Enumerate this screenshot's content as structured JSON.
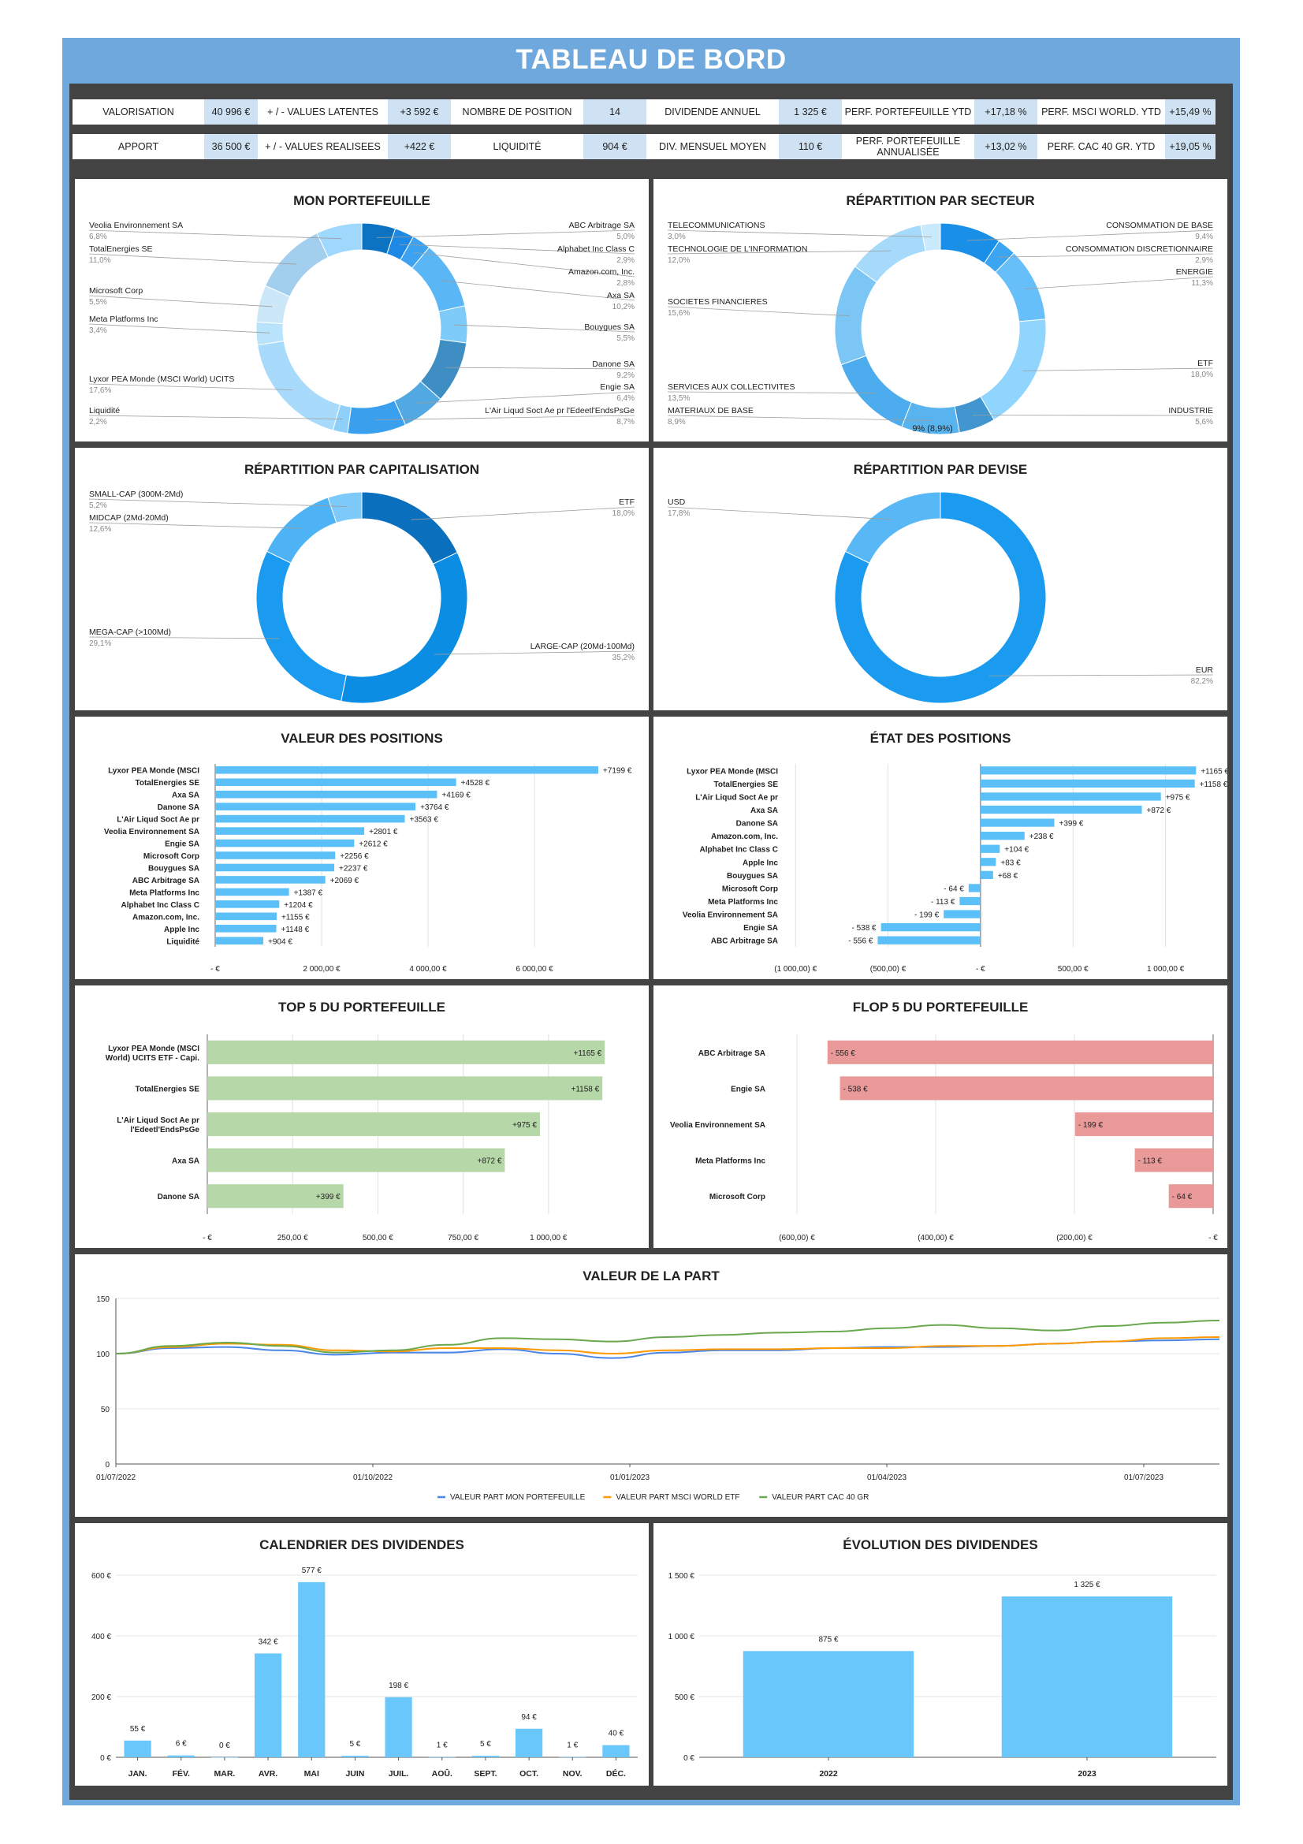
{
  "title": "TABLEAU DE BORD",
  "kpis": {
    "row1": [
      {
        "label": "VALORISATION",
        "value": "40 996 €"
      },
      {
        "label": "+ / - VALUES LATENTES",
        "value": "+3 592 €"
      },
      {
        "label": "NOMBRE DE POSITION",
        "value": "14"
      },
      {
        "label": "DIVIDENDE ANNUEL",
        "value": "1 325 €"
      },
      {
        "label": "PERF. PORTEFEUILLE YTD",
        "value": "+17,18 %"
      },
      {
        "label": "PERF. MSCI WORLD. YTD",
        "value": "+15,49 %"
      }
    ],
    "row2": [
      {
        "label": "APPORT",
        "value": "36 500 €"
      },
      {
        "label": "+ / - VALUES REALISEES",
        "value": "+422 €"
      },
      {
        "label": "LIQUIDITÉ",
        "value": "904 €"
      },
      {
        "label": "DIV. MENSUEL MOYEN",
        "value": "110 €"
      },
      {
        "label": "PERF. PORTEFEUILLE ANNUALISÉE",
        "value": "+13,02 %"
      },
      {
        "label": "PERF. CAC 40 GR. YTD",
        "value": "+19,05 %"
      }
    ]
  },
  "colors": {
    "frame": "#6fa8dc",
    "dark": "#434343",
    "kpi_value_bg": "#cfe2f3",
    "bar": "#5bc0f8",
    "green": "#b6d7a8",
    "red": "#ea9999",
    "line_blue": "#4a86e8",
    "line_orange": "#ff9900",
    "line_green": "#6aa84f"
  },
  "chart_data": [
    {
      "id": "portefeuille",
      "type": "pie",
      "title": "MON PORTEFEUILLE",
      "slices": [
        {
          "label": "ABC Arbitrage SA",
          "pct": "5,0%",
          "value": 5.0,
          "color": "#0b73c2",
          "side": "right"
        },
        {
          "label": "Alphabet Inc Class C",
          "pct": "2,9%",
          "value": 2.9,
          "color": "#1e88e5",
          "side": "right"
        },
        {
          "label": "Amazon.com, Inc.",
          "pct": "2,8%",
          "value": 2.8,
          "color": "#3da2ef",
          "side": "right"
        },
        {
          "label": "Axa SA",
          "pct": "10,2%",
          "value": 10.2,
          "color": "#5ab6f4",
          "side": "right"
        },
        {
          "label": "Bouygues SA",
          "pct": "5,5%",
          "value": 5.5,
          "color": "#7ecbfa",
          "side": "right"
        },
        {
          "label": "Danone SA",
          "pct": "9,2%",
          "value": 9.2,
          "color": "#3e8ec4",
          "side": "right"
        },
        {
          "label": "Engie SA",
          "pct": "6,4%",
          "value": 6.4,
          "color": "#52a8e0",
          "side": "right"
        },
        {
          "label": "L'Air Liqud Soct Ae pr l'Edeetl'EndsPsGe",
          "pct": "8,7%",
          "value": 8.7,
          "color": "#3aa0ee",
          "side": "right"
        },
        {
          "label": "Liquidité",
          "pct": "2,2%",
          "value": 2.2,
          "color": "#8fd0fb",
          "side": "left"
        },
        {
          "label": "Lyxor PEA Monde (MSCI World) UCITS",
          "pct": "17,6%",
          "value": 17.6,
          "color": "#a7dafb",
          "side": "left"
        },
        {
          "label": "Meta Platforms Inc",
          "pct": "3,4%",
          "value": 3.4,
          "color": "#b9e2fb",
          "side": "left"
        },
        {
          "label": "Microsoft Corp",
          "pct": "5,5%",
          "value": 5.5,
          "color": "#cbe7f8",
          "side": "left"
        },
        {
          "label": "TotalEnergies SE",
          "pct": "11,0%",
          "value": 11.0,
          "color": "#a3cfee",
          "side": "left"
        },
        {
          "label": "Veolia Environnement SA",
          "pct": "6,8%",
          "value": 6.8,
          "color": "#9ed8fd",
          "side": "left"
        }
      ]
    },
    {
      "id": "secteur",
      "type": "pie",
      "title": "RÉPARTITION PAR SECTEUR",
      "center_label": "9% (8,9%)",
      "slices": [
        {
          "label": "CONSOMMATION DE BASE",
          "pct": "9,4%",
          "value": 9.4,
          "color": "#1a8fe8",
          "side": "right"
        },
        {
          "label": "CONSOMMATION DISCRETIONNAIRE",
          "pct": "2,9%",
          "value": 2.9,
          "color": "#3ba5f1",
          "side": "right"
        },
        {
          "label": "ENERGIE",
          "pct": "11,3%",
          "value": 11.3,
          "color": "#66bff9",
          "side": "right"
        },
        {
          "label": "ETF",
          "pct": "18,0%",
          "value": 18.0,
          "color": "#90d5fd",
          "side": "right"
        },
        {
          "label": "INDUSTRIE",
          "pct": "5,6%",
          "value": 5.6,
          "color": "#4296cf",
          "side": "right"
        },
        {
          "label": "MATERIAUX DE BASE",
          "pct": "8,9%",
          "value": 8.9,
          "color": "#58b3ef",
          "side": "left"
        },
        {
          "label": "SERVICES AUX COLLECTIVITES",
          "pct": "13,5%",
          "value": 13.5,
          "color": "#4cacee",
          "side": "left"
        },
        {
          "label": "SOCIETES FINANCIERES",
          "pct": "15,6%",
          "value": 15.6,
          "color": "#7cc6f6",
          "side": "left"
        },
        {
          "label": "TECHNOLOGIE DE L'INFORMATION",
          "pct": "12,0%",
          "value": 12.0,
          "color": "#a6dafa",
          "side": "left"
        },
        {
          "label": "TELECOMMUNICATIONS",
          "pct": "3,0%",
          "value": 3.0,
          "color": "#c9eafc",
          "side": "left"
        }
      ]
    },
    {
      "id": "capitalisation",
      "type": "pie",
      "title": "RÉPARTITION PAR CAPITALISATION",
      "slices": [
        {
          "label": "ETF",
          "pct": "18,0%",
          "value": 18.0,
          "color": "#0a6fbd",
          "side": "right"
        },
        {
          "label": "LARGE-CAP (20Md-100Md)",
          "pct": "35,2%",
          "value": 35.2,
          "color": "#0b8de4",
          "side": "right"
        },
        {
          "label": "MEGA-CAP (>100Md)",
          "pct": "29,1%",
          "value": 29.1,
          "color": "#1a9bf0",
          "side": "left"
        },
        {
          "label": "MIDCAP (2Md-20Md)",
          "pct": "12,6%",
          "value": 12.6,
          "color": "#4db3f5",
          "side": "left"
        },
        {
          "label": "SMALL-CAP (300M-2Md)",
          "pct": "5,2%",
          "value": 5.2,
          "color": "#7cc9fa",
          "side": "left"
        }
      ]
    },
    {
      "id": "devise",
      "type": "pie",
      "title": "RÉPARTITION PAR DEVISE",
      "slices": [
        {
          "label": "EUR",
          "pct": "82,2%",
          "value": 82.2,
          "color": "#1a9bf0",
          "side": "right"
        },
        {
          "label": "USD",
          "pct": "17,8%",
          "value": 17.8,
          "color": "#58b8f6",
          "side": "left"
        }
      ]
    },
    {
      "id": "valeur_positions",
      "type": "bar",
      "orientation": "horizontal",
      "title": "VALEUR DES POSITIONS",
      "categories": [
        "Lyxor PEA Monde (MSCI",
        "TotalEnergies SE",
        "Axa SA",
        "Danone SA",
        "L'Air Liqud Soct Ae pr",
        "Veolia Environnement SA",
        "Engie SA",
        "Microsoft Corp",
        "Bouygues SA",
        "ABC Arbitrage SA",
        "Meta Platforms Inc",
        "Alphabet Inc Class C",
        "Amazon.com, Inc.",
        "Apple Inc",
        "Liquidité"
      ],
      "values": [
        7199,
        4528,
        4169,
        3764,
        3563,
        2801,
        2612,
        2256,
        2237,
        2069,
        1387,
        1204,
        1155,
        1148,
        904
      ],
      "labels": [
        "+7199 €",
        "+4528 €",
        "+4169 €",
        "+3764 €",
        "+3563 €",
        "+2801 €",
        "+2612 €",
        "+2256 €",
        "+2237 €",
        "+2069 €",
        "+1387 €",
        "+1204 €",
        "+1155 €",
        "+1148 €",
        "+904 €"
      ],
      "xlim": [
        0,
        8000
      ],
      "ticks": [
        {
          "v": 0,
          "t": "-   €"
        },
        {
          "v": 2000,
          "t": "2 000,00  €"
        },
        {
          "v": 4000,
          "t": "4 000,00  €"
        },
        {
          "v": 6000,
          "t": "6 000,00  €"
        }
      ]
    },
    {
      "id": "etat_positions",
      "type": "bar",
      "orientation": "horizontal",
      "title": "ÉTAT DES POSITIONS",
      "categories": [
        "Lyxor PEA Monde (MSCI",
        "TotalEnergies SE",
        "L'Air Liqud Soct Ae pr",
        "Axa SA",
        "Danone SA",
        "Amazon.com, Inc.",
        "Alphabet Inc Class C",
        "Apple Inc",
        "Bouygues SA",
        "Microsoft Corp",
        "Meta Platforms Inc",
        "Veolia Environnement SA",
        "Engie SA",
        "ABC Arbitrage SA"
      ],
      "values": [
        1165,
        1158,
        975,
        872,
        399,
        238,
        104,
        83,
        68,
        -64,
        -113,
        -199,
        -538,
        -556
      ],
      "labels": [
        "+1165 €",
        "+1158 €",
        "+975 €",
        "+872 €",
        "+399 €",
        "+238 €",
        "+104 €",
        "+83 €",
        "+68 €",
        "- 64 €",
        "- 113 €",
        "- 199 €",
        "- 538 €",
        "- 556 €"
      ],
      "xlim": [
        -1150,
        1300
      ],
      "ticks": [
        {
          "v": -1000,
          "t": "(1 000,00) €"
        },
        {
          "v": -500,
          "t": "(500,00) €"
        },
        {
          "v": 0,
          "t": "-   €"
        },
        {
          "v": 500,
          "t": "500,00  €"
        },
        {
          "v": 1000,
          "t": "1 000,00  €"
        }
      ]
    },
    {
      "id": "top5",
      "type": "bar",
      "orientation": "horizontal",
      "title": "TOP 5 DU PORTEFEUILLE",
      "categories": [
        "Lyxor PEA Monde (MSCI World) UCITS ETF - Capi.",
        "TotalEnergies SE",
        "L'Air Liqud Soct Ae pr l'Edeetl'EndsPsGe",
        "Axa SA",
        "Danone SA"
      ],
      "values": [
        1165,
        1158,
        975,
        872,
        399
      ],
      "labels": [
        "+1165 €",
        "+1158 €",
        "+975 €",
        "+872 €",
        "+399 €"
      ],
      "xlim": [
        0,
        1250
      ],
      "ticks": [
        {
          "v": 0,
          "t": "-   €"
        },
        {
          "v": 250,
          "t": "250,00  €"
        },
        {
          "v": 500,
          "t": "500,00  €"
        },
        {
          "v": 750,
          "t": "750,00  €"
        },
        {
          "v": 1000,
          "t": "1 000,00  €"
        }
      ]
    },
    {
      "id": "flop5",
      "type": "bar",
      "orientation": "horizontal",
      "title": "FLOP 5 DU PORTEFEUILLE",
      "categories": [
        "ABC Arbitrage SA",
        "Engie SA",
        "Veolia Environnement SA",
        "Meta Platforms Inc",
        "Microsoft Corp"
      ],
      "values": [
        -556,
        -538,
        -199,
        -113,
        -64
      ],
      "labels": [
        "- 556 €",
        "- 538 €",
        "- 199 €",
        "- 113 €",
        "- 64 €"
      ],
      "xlim": [
        -600,
        0
      ],
      "ticks": [
        {
          "v": -600,
          "t": "(600,00) €"
        },
        {
          "v": -400,
          "t": "(400,00) €"
        },
        {
          "v": -200,
          "t": "(200,00) €"
        },
        {
          "v": 0,
          "t": "-   €"
        }
      ]
    },
    {
      "id": "valeur_part",
      "type": "line",
      "title": "VALEUR DE LA PART",
      "x_ticks": [
        "01/07/2022",
        "01/10/2022",
        "01/01/2023",
        "01/04/2023",
        "01/07/2023"
      ],
      "ylim": [
        0,
        150
      ],
      "y_ticks": [
        0,
        50,
        100,
        150
      ],
      "series": [
        {
          "name": "VALEUR PART MON PORTEFEUILLE",
          "color": "#4a86e8",
          "values": [
            100,
            105,
            106,
            103,
            99,
            101,
            101,
            104,
            100,
            96,
            101,
            103,
            103,
            105,
            106,
            106,
            107,
            109,
            111,
            112,
            113
          ]
        },
        {
          "name": "VALEUR PART MSCI WORLD ETF",
          "color": "#ff9900",
          "values": [
            100,
            106,
            109,
            108,
            103,
            102,
            105,
            105,
            103,
            100,
            103,
            104,
            104,
            105,
            105,
            107,
            107,
            109,
            111,
            114,
            115
          ]
        },
        {
          "name": "VALEUR PART CAC 40 GR",
          "color": "#6aa84f",
          "values": [
            100,
            107,
            110,
            107,
            101,
            103,
            108,
            114,
            113,
            111,
            115,
            117,
            119,
            120,
            123,
            126,
            123,
            121,
            125,
            128,
            130
          ]
        }
      ]
    },
    {
      "id": "calendrier",
      "type": "bar",
      "title": "CALENDRIER DES DIVIDENDES",
      "categories": [
        "JAN.",
        "FÉV.",
        "MAR.",
        "AVR.",
        "MAI",
        "JUIN",
        "JUIL.",
        "AOÛ.",
        "SEPT.",
        "OCT.",
        "NOV.",
        "DÉC."
      ],
      "values": [
        55,
        6,
        0,
        342,
        577,
        5,
        198,
        1,
        5,
        94,
        1,
        40
      ],
      "labels": [
        "55 €",
        "6 €",
        "0 €",
        "342 €",
        "577 €",
        "5 €",
        "198 €",
        "1 €",
        "5 €",
        "94 €",
        "1 €",
        "40 €"
      ],
      "ylim": [
        0,
        600
      ],
      "y_ticks": [
        {
          "v": 0,
          "t": "0 €"
        },
        {
          "v": 200,
          "t": "200 €"
        },
        {
          "v": 400,
          "t": "400 €"
        },
        {
          "v": 600,
          "t": "600 €"
        }
      ]
    },
    {
      "id": "evolution",
      "type": "bar",
      "title": "ÉVOLUTION DES DIVIDENDES",
      "categories": [
        "2022",
        "2023"
      ],
      "values": [
        875,
        1325
      ],
      "labels": [
        "875 €",
        "1 325 €"
      ],
      "ylim": [
        0,
        1500
      ],
      "y_ticks": [
        {
          "v": 0,
          "t": "0 €"
        },
        {
          "v": 500,
          "t": "500 €"
        },
        {
          "v": 1000,
          "t": "1 000 €"
        },
        {
          "v": 1500,
          "t": "1 500 €"
        }
      ]
    }
  ]
}
